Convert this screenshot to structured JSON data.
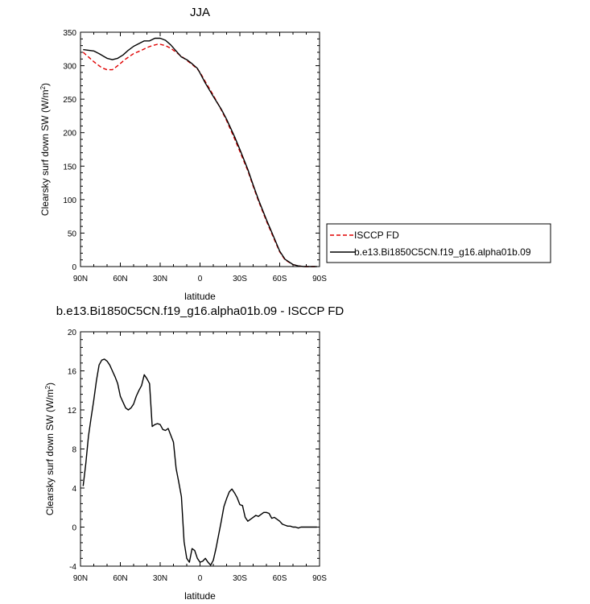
{
  "chart_data": [
    {
      "type": "line",
      "title": "JJA",
      "xlabel": "latitude",
      "ylabel": "Clearsky surf down SW (W/m²)",
      "xlim": [
        90,
        -90
      ],
      "ylim": [
        0,
        350
      ],
      "xticks": [
        {
          "value": 90,
          "label": "90N"
        },
        {
          "value": 60,
          "label": "60N"
        },
        {
          "value": 30,
          "label": "30N"
        },
        {
          "value": 0,
          "label": "0"
        },
        {
          "value": -30,
          "label": "30S"
        },
        {
          "value": -60,
          "label": "60S"
        },
        {
          "value": -90,
          "label": "90S"
        }
      ],
      "yticks": [
        0,
        50,
        100,
        150,
        200,
        250,
        300,
        350
      ],
      "grid": false,
      "legend": "right-outside",
      "series": [
        {
          "name": "ISCCP FD",
          "color": "#e00000",
          "dash": true,
          "x": [
            88,
            80,
            74,
            70,
            66,
            62,
            56,
            50,
            44,
            40,
            36,
            32,
            30,
            26,
            22,
            18,
            14,
            10,
            6,
            2,
            0,
            -4,
            -10,
            -16,
            -20,
            -26,
            -30,
            -36,
            -40,
            -44,
            -50,
            -56,
            -60,
            -64,
            -70,
            -74,
            -78,
            -82,
            -86,
            -88
          ],
          "y": [
            320,
            306,
            297,
            294,
            294,
            300,
            310,
            318,
            323,
            327,
            330,
            332,
            332,
            330,
            326,
            320,
            314,
            308,
            302,
            295,
            290,
            276,
            256,
            234,
            218,
            191,
            172,
            143,
            120,
            98,
            68,
            40,
            22,
            10,
            3,
            1,
            0,
            0,
            0,
            0
          ]
        },
        {
          "name": "b.e13.Bi1850C5CN.f19_g16.alpha01b.09",
          "color": "#000000",
          "dash": false,
          "x": [
            88,
            80,
            76,
            70,
            66,
            62,
            58,
            54,
            50,
            46,
            42,
            38,
            34,
            30,
            26,
            22,
            18,
            14,
            10,
            6,
            2,
            0,
            -4,
            -10,
            -16,
            -20,
            -26,
            -30,
            -36,
            -40,
            -44,
            -50,
            -56,
            -60,
            -64,
            -70,
            -74,
            -78,
            -82,
            -86,
            -88
          ],
          "y": [
            324,
            322,
            318,
            311,
            309,
            311,
            316,
            323,
            329,
            333,
            337,
            337,
            341,
            341,
            338,
            331,
            322,
            313,
            309,
            303,
            296,
            289,
            274,
            254,
            235,
            220,
            194,
            175,
            145,
            122,
            100,
            70,
            42,
            23,
            11,
            3,
            1,
            0,
            0,
            0,
            0
          ]
        }
      ]
    },
    {
      "type": "line",
      "title": "b.e13.Bi1850C5CN.f19_g16.alpha01b.09 - ISCCP FD",
      "xlabel": "latitude",
      "ylabel": "Clearsky surf down SW (W/m²)",
      "xlim": [
        90,
        -90
      ],
      "ylim": [
        -4,
        20
      ],
      "xticks": [
        {
          "value": 90,
          "label": "90N"
        },
        {
          "value": 60,
          "label": "60N"
        },
        {
          "value": 30,
          "label": "30N"
        },
        {
          "value": 0,
          "label": "0"
        },
        {
          "value": -30,
          "label": "30S"
        },
        {
          "value": -60,
          "label": "60S"
        },
        {
          "value": -90,
          "label": "90S"
        }
      ],
      "yticks": [
        -4,
        0,
        4,
        8,
        12,
        16,
        20
      ],
      "grid": false,
      "series": [
        {
          "color": "#000000",
          "dash": false,
          "x": [
            88,
            86,
            84,
            82,
            80,
            78,
            76,
            74,
            72,
            70,
            68,
            66,
            64,
            62,
            60,
            58,
            56,
            54,
            52,
            50,
            48,
            46,
            44,
            42,
            40,
            38,
            36,
            34,
            32,
            30,
            28,
            26,
            24,
            22,
            20,
            18,
            16,
            14,
            12,
            10,
            8,
            6,
            4,
            2,
            0,
            -2,
            -4,
            -6,
            -8,
            -10,
            -12,
            -14,
            -16,
            -18,
            -20,
            -22,
            -24,
            -26,
            -28,
            -30,
            -32,
            -34,
            -36,
            -38,
            -40,
            -42,
            -44,
            -46,
            -48,
            -50,
            -52,
            -54,
            -56,
            -58,
            -60,
            -62,
            -64,
            -66,
            -68,
            -70,
            -72,
            -74,
            -76,
            -78,
            -80,
            -82,
            -84,
            -86,
            -88
          ],
          "y": [
            4.2,
            6.5,
            9.3,
            11.2,
            13.0,
            15.0,
            16.6,
            17.1,
            17.2,
            17.0,
            16.6,
            16.0,
            15.4,
            14.7,
            13.4,
            12.8,
            12.2,
            12.0,
            12.2,
            12.6,
            13.4,
            14.0,
            14.5,
            15.6,
            15.2,
            14.7,
            10.3,
            10.5,
            10.6,
            10.5,
            10.0,
            9.9,
            10.1,
            9.4,
            8.7,
            6.0,
            4.6,
            3.1,
            -1.5,
            -3.2,
            -3.6,
            -2.2,
            -2.4,
            -3.2,
            -3.6,
            -3.5,
            -3.2,
            -3.6,
            -3.9,
            -3.4,
            -2.2,
            -0.8,
            0.6,
            2.1,
            2.9,
            3.6,
            3.9,
            3.5,
            3.0,
            2.3,
            2.2,
            1.0,
            0.6,
            0.8,
            1.0,
            1.2,
            1.1,
            1.3,
            1.5,
            1.5,
            1.4,
            0.9,
            1.0,
            0.8,
            0.6,
            0.3,
            0.2,
            0.1,
            0.1,
            0.0,
            0.0,
            -0.1,
            0.0,
            0.0,
            0.0,
            0.0,
            0.0,
            0.0,
            0.0
          ]
        }
      ]
    }
  ]
}
